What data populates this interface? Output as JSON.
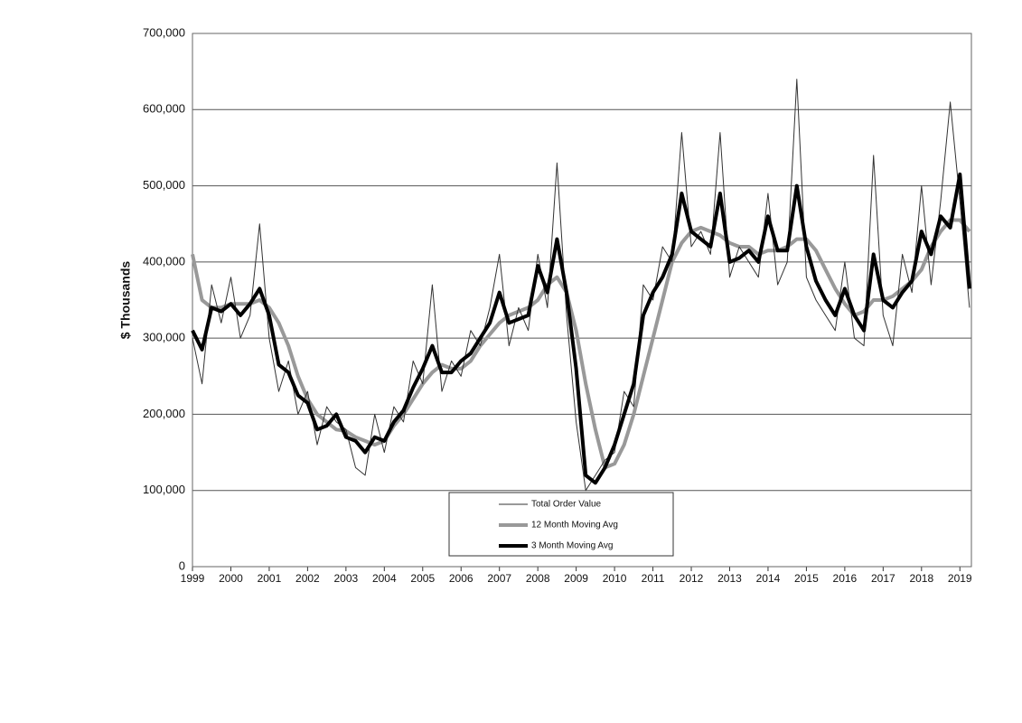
{
  "chart_data": {
    "type": "line",
    "ylabel": "$ Thousands",
    "x": [
      1999,
      1999.25,
      1999.5,
      1999.75,
      2000,
      2000.25,
      2000.5,
      2000.75,
      2001,
      2001.25,
      2001.5,
      2001.75,
      2002,
      2002.25,
      2002.5,
      2002.75,
      2003,
      2003.25,
      2003.5,
      2003.75,
      2004,
      2004.25,
      2004.5,
      2004.75,
      2005,
      2005.25,
      2005.5,
      2005.75,
      2006,
      2006.25,
      2006.5,
      2006.75,
      2007,
      2007.25,
      2007.5,
      2007.75,
      2008,
      2008.25,
      2008.5,
      2008.75,
      2009,
      2009.25,
      2009.5,
      2009.75,
      2010,
      2010.25,
      2010.5,
      2010.75,
      2011,
      2011.25,
      2011.5,
      2011.75,
      2012,
      2012.25,
      2012.5,
      2012.75,
      2013,
      2013.25,
      2013.5,
      2013.75,
      2014,
      2014.25,
      2014.5,
      2014.75,
      2015,
      2015.25,
      2015.5,
      2015.75,
      2016,
      2016.25,
      2016.5,
      2016.75,
      2017,
      2017.25,
      2017.5,
      2017.75,
      2018,
      2018.25,
      2018.5,
      2018.75,
      2019,
      2019.25
    ],
    "series": [
      {
        "name": "Total Order Value",
        "color": "#333333",
        "width": 1,
        "values": [
          300000,
          240000,
          370000,
          320000,
          380000,
          300000,
          330000,
          450000,
          300000,
          230000,
          270000,
          200000,
          230000,
          160000,
          210000,
          190000,
          180000,
          130000,
          120000,
          200000,
          150000,
          210000,
          190000,
          270000,
          240000,
          370000,
          230000,
          270000,
          250000,
          310000,
          290000,
          340000,
          410000,
          290000,
          340000,
          310000,
          410000,
          340000,
          530000,
          330000,
          190000,
          100000,
          120000,
          140000,
          150000,
          230000,
          210000,
          370000,
          350000,
          420000,
          400000,
          570000,
          420000,
          440000,
          410000,
          570000,
          380000,
          420000,
          400000,
          380000,
          490000,
          370000,
          400000,
          640000,
          380000,
          350000,
          330000,
          310000,
          400000,
          300000,
          290000,
          540000,
          330000,
          290000,
          410000,
          360000,
          500000,
          370000,
          480000,
          610000,
          480000,
          340000
        ]
      },
      {
        "name": "12 Month Moving Avg",
        "color": "#999999",
        "width": 4,
        "values": [
          410000,
          350000,
          340000,
          340000,
          345000,
          345000,
          345000,
          350000,
          340000,
          320000,
          290000,
          250000,
          220000,
          200000,
          190000,
          180000,
          178000,
          170000,
          165000,
          160000,
          165000,
          185000,
          200000,
          220000,
          240000,
          255000,
          265000,
          260000,
          260000,
          270000,
          290000,
          305000,
          320000,
          330000,
          335000,
          340000,
          350000,
          370000,
          380000,
          360000,
          310000,
          240000,
          180000,
          130000,
          135000,
          160000,
          200000,
          250000,
          300000,
          350000,
          400000,
          425000,
          440000,
          445000,
          440000,
          435000,
          425000,
          420000,
          420000,
          410000,
          415000,
          415000,
          420000,
          430000,
          430000,
          415000,
          390000,
          365000,
          345000,
          330000,
          335000,
          350000,
          350000,
          355000,
          365000,
          375000,
          390000,
          420000,
          440000,
          455000,
          455000,
          440000
        ]
      },
      {
        "name": "3 Month Moving Avg",
        "color": "#000000",
        "width": 4,
        "values": [
          310000,
          285000,
          340000,
          335000,
          345000,
          330000,
          345000,
          365000,
          330000,
          265000,
          255000,
          225000,
          215000,
          180000,
          185000,
          200000,
          170000,
          165000,
          150000,
          170000,
          165000,
          190000,
          205000,
          235000,
          260000,
          290000,
          255000,
          255000,
          270000,
          280000,
          300000,
          320000,
          360000,
          320000,
          325000,
          330000,
          395000,
          360000,
          430000,
          360000,
          260000,
          120000,
          110000,
          130000,
          160000,
          200000,
          240000,
          330000,
          360000,
          380000,
          410000,
          490000,
          440000,
          430000,
          420000,
          490000,
          400000,
          405000,
          415000,
          400000,
          460000,
          415000,
          415000,
          500000,
          420000,
          375000,
          350000,
          330000,
          365000,
          330000,
          310000,
          410000,
          350000,
          340000,
          360000,
          375000,
          440000,
          410000,
          460000,
          445000,
          515000,
          365000
        ]
      }
    ],
    "xlim": [
      1999,
      2019.3
    ],
    "xticks": [
      1999,
      2000,
      2001,
      2002,
      2003,
      2004,
      2005,
      2006,
      2007,
      2008,
      2009,
      2010,
      2011,
      2012,
      2013,
      2014,
      2015,
      2016,
      2017,
      2018,
      2019
    ],
    "ylim": [
      0,
      700000
    ],
    "yticks": [
      0,
      {
        "value": 100000,
        "label": "100,000"
      },
      {
        "value": 200000,
        "label": "200,000"
      },
      {
        "value": 300000,
        "label": "300,000"
      },
      {
        "value": 400000,
        "label": "400,000"
      },
      {
        "value": 500000,
        "label": "500,000"
      },
      {
        "value": 600000,
        "label": "600,000"
      },
      {
        "value": 700000,
        "label": "700,000"
      }
    ],
    "grid": true
  }
}
